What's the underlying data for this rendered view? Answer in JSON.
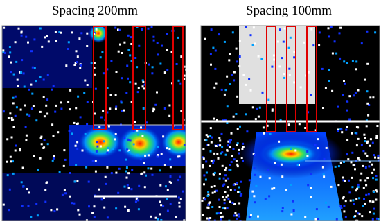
{
  "panels": [
    {
      "title": "Spacing 200mm"
    },
    {
      "title": "Spacing 100mm"
    }
  ]
}
